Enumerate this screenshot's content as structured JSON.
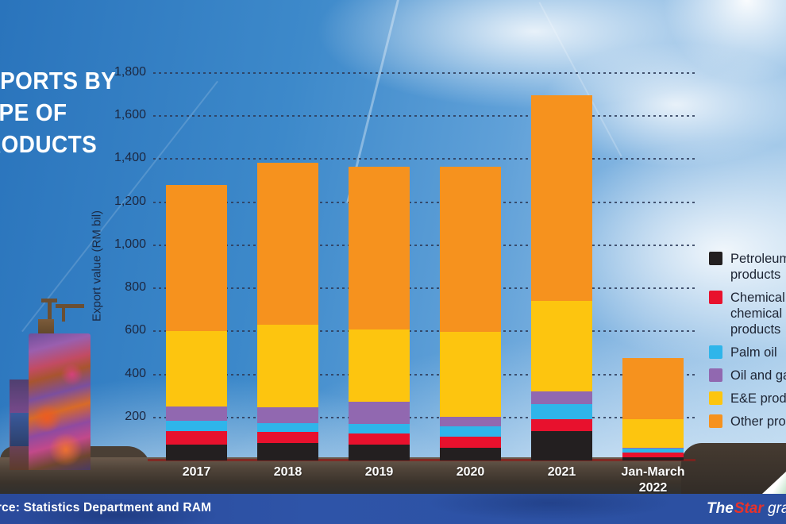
{
  "title": {
    "lines": [
      "EXPORTS BY",
      "TYPE OF",
      "PRODUCTS"
    ]
  },
  "source": "Source: Statistics Department and RAM",
  "branding": {
    "the": "The",
    "star": "Star",
    "suffix": " graphics"
  },
  "chart_data": {
    "type": "bar",
    "stacked": true,
    "title": "Exports by type of products",
    "ylabel": "Export value (RM bil)",
    "xlabel": "",
    "ylim": [
      0,
      1800
    ],
    "ytick_step": 200,
    "grid": "horizontal-dashed",
    "legend_position": "right",
    "categories": [
      "2017",
      "2018",
      "2019",
      "2020",
      "2021",
      "Jan-March\n2022"
    ],
    "series": [
      {
        "name": "Petroleum products",
        "color": "#231f20",
        "values": [
          75,
          80,
          74,
          59,
          135,
          16
        ]
      },
      {
        "name": "Chemical and chemical products",
        "color": "#e8112d",
        "values": [
          62,
          52,
          51,
          51,
          57,
          21
        ]
      },
      {
        "name": "Palm oil",
        "color": "#2fb5ea",
        "values": [
          47,
          40,
          44,
          49,
          71,
          20
        ]
      },
      {
        "name": "Oil and gas",
        "color": "#9168b0",
        "values": [
          68,
          76,
          103,
          43,
          57,
          3
        ]
      },
      {
        "name": "E&E products",
        "color": "#fdc50f",
        "values": [
          348,
          384,
          338,
          395,
          421,
          131
        ]
      },
      {
        "name": "Other products",
        "color": "#f6921e",
        "values": [
          680,
          753,
          755,
          768,
          954,
          284
        ]
      }
    ],
    "totals": [
      1280,
      1385,
      1365,
      1365,
      1695,
      475
    ]
  }
}
